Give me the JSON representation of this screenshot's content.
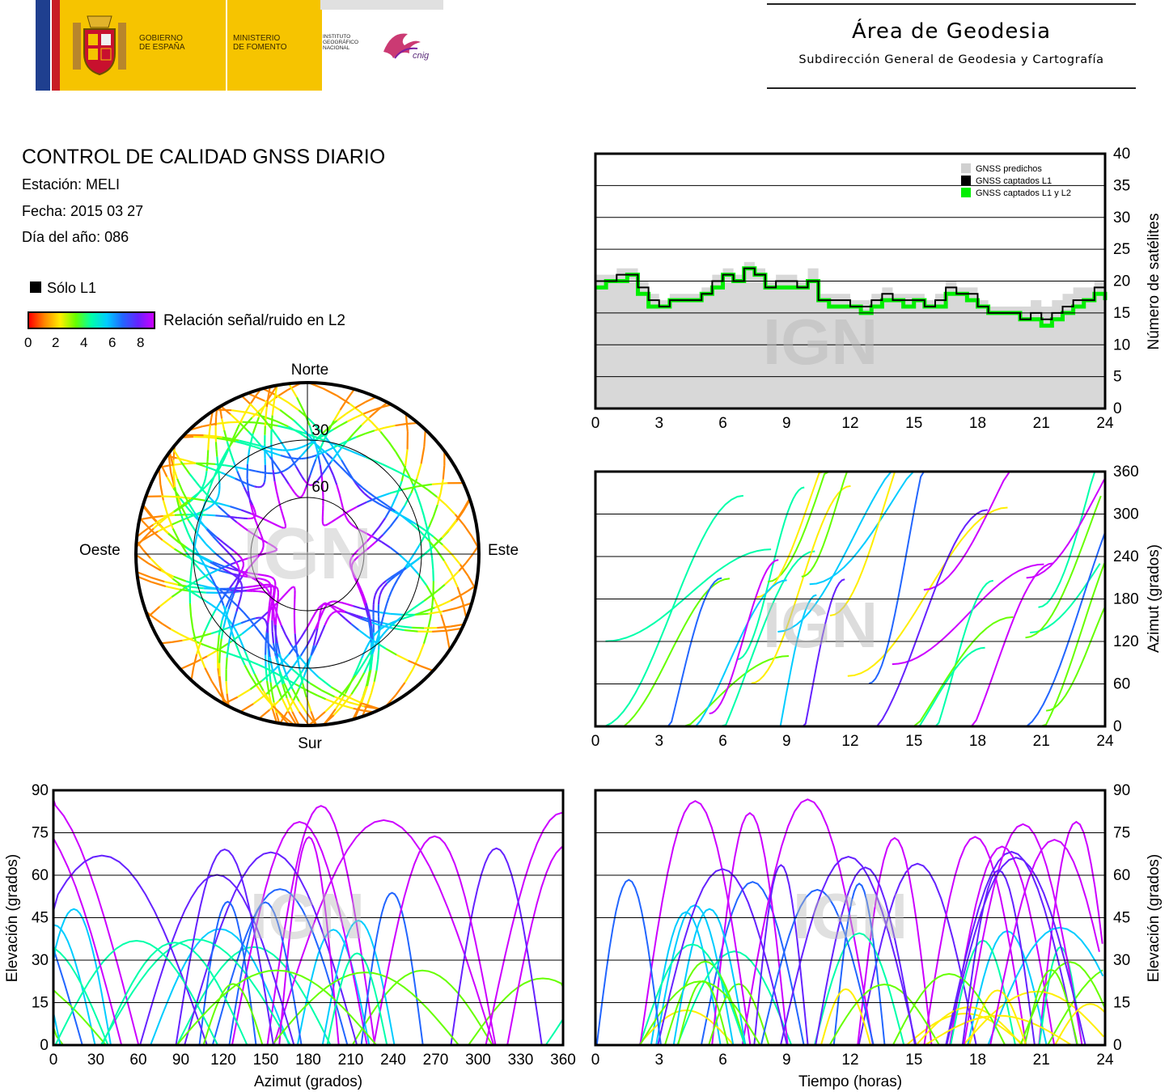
{
  "header": {
    "gov_line1": "GOBIERNO",
    "gov_line2": "DE ESPAÑA",
    "min_line1": "MINISTERIO",
    "min_line2": "DE FOMENTO",
    "inst_line1": "INSTITUTO",
    "inst_line2": "GEOGRÁFICO",
    "inst_line3": "NACIONAL",
    "cnig": "cnig",
    "area_title": "Área de Geodesia",
    "area_subtitle": "Subdirección General de Geodesia y Cartografía"
  },
  "info": {
    "title": "CONTROL DE CALIDAD GNSS DIARIO",
    "station": "Estación: MELI",
    "date": "Fecha: 2015 03 27",
    "doy": "Día del año: 086"
  },
  "legend": {
    "l1_only": "Sólo L1",
    "snr_label": "Relación señal/ruido en L2",
    "snr_ticks": [
      "0",
      "2",
      "4",
      "6",
      "8"
    ]
  },
  "watermark": "IGN",
  "colors": {
    "background": "#ffffff",
    "predicted_fill": "#d8d8d8",
    "l1_color": "#000000",
    "l1l2_color": "#00ee00",
    "snr_scale": [
      "#ff0000",
      "#ff8800",
      "#ffee00",
      "#66ff00",
      "#00ffaa",
      "#00ccff",
      "#2266ff",
      "#6622ff",
      "#cc00ff"
    ]
  },
  "chart_data": [
    {
      "id": "skyplot",
      "type": "scatter",
      "title": "",
      "directions": {
        "north": "Norte",
        "south": "Sur",
        "east": "Este",
        "west": "Oeste"
      },
      "elevation_rings": [
        "30",
        "60"
      ],
      "note": "polar plot of satellite tracks colored by L2 SNR"
    },
    {
      "id": "num_sats",
      "type": "area",
      "ylabel": "Número de satélites",
      "xlabel": "",
      "xlim": [
        0,
        24
      ],
      "ylim": [
        0,
        40
      ],
      "xticks": [
        "0",
        "3",
        "6",
        "9",
        "12",
        "15",
        "18",
        "21",
        "24"
      ],
      "yticks": [
        "0",
        "5",
        "10",
        "15",
        "20",
        "25",
        "30",
        "35",
        "40"
      ],
      "legend": [
        "GNSS predichos",
        "GNSS captados L1",
        "GNSS captados L1 y L2"
      ],
      "legend_position": "top-right",
      "grid": true,
      "x": [
        0,
        0.5,
        1,
        1.5,
        2,
        2.5,
        3,
        3.5,
        4,
        4.5,
        5,
        5.5,
        6,
        6.5,
        7,
        7.5,
        8,
        8.5,
        9,
        9.5,
        10,
        10.5,
        11,
        11.5,
        12,
        12.5,
        13,
        13.5,
        14,
        14.5,
        15,
        15.5,
        16,
        16.5,
        17,
        17.5,
        18,
        18.5,
        19,
        19.5,
        20,
        20.5,
        21,
        21.5,
        22,
        22.5,
        23,
        23.5,
        24
      ],
      "series": [
        {
          "name": "GNSS predichos",
          "values": [
            21,
            21,
            22,
            22,
            20,
            18,
            17,
            18,
            18,
            18,
            19,
            21,
            22,
            21,
            23,
            22,
            20,
            21,
            21,
            20,
            22,
            18,
            18,
            18,
            17,
            17,
            18,
            19,
            18,
            18,
            18,
            17,
            18,
            20,
            19,
            19,
            17,
            16,
            16,
            16,
            16,
            17,
            16,
            17,
            18,
            19,
            19,
            20,
            18
          ]
        },
        {
          "name": "GNSS captados L1",
          "values": [
            20,
            20,
            21,
            21,
            19,
            17,
            16,
            17,
            17,
            17,
            18,
            20,
            21,
            20,
            22,
            21,
            19,
            20,
            20,
            19,
            20,
            17,
            17,
            17,
            16,
            16,
            17,
            18,
            17,
            17,
            17,
            16,
            17,
            19,
            18,
            18,
            16,
            15,
            15,
            15,
            14,
            15,
            14,
            15,
            16,
            17,
            17,
            19,
            17
          ]
        },
        {
          "name": "GNSS captados L1 y L2",
          "values": [
            19,
            20,
            20,
            21,
            18,
            16,
            16,
            17,
            17,
            17,
            18,
            19,
            21,
            20,
            22,
            21,
            19,
            19,
            19,
            19,
            20,
            17,
            16,
            16,
            16,
            15,
            16,
            17,
            17,
            16,
            17,
            16,
            16,
            18,
            18,
            17,
            16,
            15,
            15,
            15,
            14,
            14,
            13,
            14,
            15,
            16,
            17,
            18,
            17
          ]
        }
      ]
    },
    {
      "id": "azimuth_time",
      "type": "scatter",
      "ylabel": "Azimut (grados)",
      "xlim": [
        0,
        24
      ],
      "ylim": [
        0,
        360
      ],
      "xticks": [
        "0",
        "3",
        "6",
        "9",
        "12",
        "15",
        "18",
        "21",
        "24"
      ],
      "yticks": [
        "0",
        "60",
        "120",
        "180",
        "240",
        "300",
        "360"
      ],
      "grid": true
    },
    {
      "id": "elev_azimuth",
      "type": "scatter",
      "xlabel": "Azimut (grados)",
      "ylabel": "Elevación (grados)",
      "xlim": [
        0,
        360
      ],
      "ylim": [
        0,
        90
      ],
      "xticks": [
        "0",
        "30",
        "60",
        "90",
        "120",
        "150",
        "180",
        "210",
        "240",
        "270",
        "300",
        "330",
        "360"
      ],
      "yticks": [
        "0",
        "15",
        "30",
        "45",
        "60",
        "75",
        "90"
      ],
      "grid": true
    },
    {
      "id": "elev_time",
      "type": "scatter",
      "xlabel": "Tiempo (horas)",
      "ylabel": "Elevación (grados)",
      "xlim": [
        0,
        24
      ],
      "ylim": [
        0,
        90
      ],
      "xticks": [
        "0",
        "3",
        "6",
        "9",
        "12",
        "15",
        "18",
        "21",
        "24"
      ],
      "yticks": [
        "0",
        "15",
        "30",
        "45",
        "60",
        "75",
        "90"
      ],
      "grid": true
    }
  ]
}
